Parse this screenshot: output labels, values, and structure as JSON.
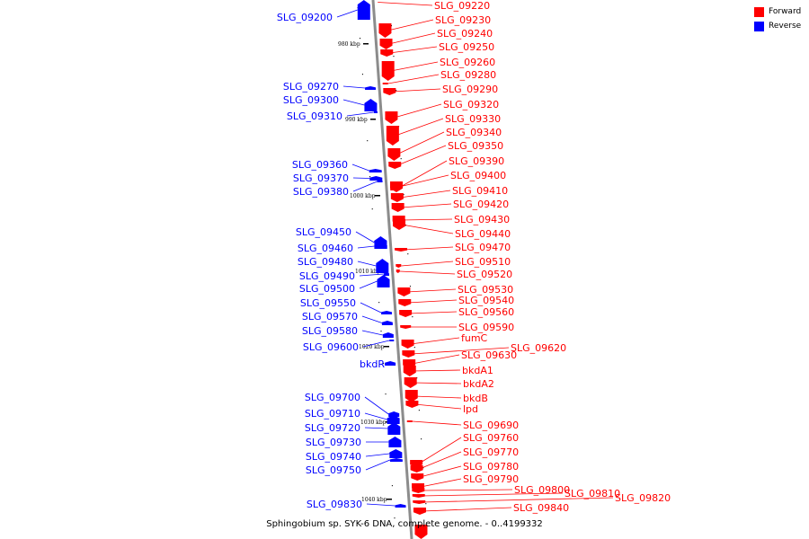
{
  "legend": {
    "forward_label": "Forward",
    "reverse_label": "Reverse",
    "forward_color": "#ff0000",
    "reverse_color": "#0000ff"
  },
  "caption": "Sphingobium sp. SYK-6 DNA, complete genome. - 0..4199332",
  "backbone_color": "#8c8c8c",
  "scale_ticks": [
    "980 kbp",
    "990 kbp",
    "1000 kbp",
    "1010 kbp",
    "1020 kbp",
    "1030 kbp",
    "1040 kbp"
  ],
  "genes_reverse": [
    "SLG_09200",
    "SLG_09270",
    "SLG_09300",
    "SLG_09310",
    "SLG_09360",
    "SLG_09370",
    "SLG_09380",
    "SLG_09450",
    "SLG_09460",
    "SLG_09480",
    "SLG_09490",
    "SLG_09500",
    "SLG_09550",
    "SLG_09570",
    "SLG_09580",
    "SLG_09600",
    "bkdR",
    "SLG_09700",
    "SLG_09710",
    "SLG_09720",
    "SLG_09730",
    "SLG_09740",
    "SLG_09750",
    "SLG_09830"
  ],
  "genes_forward": [
    "SLG_09220",
    "SLG_09230",
    "SLG_09240",
    "SLG_09250",
    "SLG_09260",
    "SLG_09280",
    "SLG_09290",
    "SLG_09320",
    "SLG_09330",
    "SLG_09340",
    "SLG_09350",
    "SLG_09390",
    "SLG_09400",
    "SLG_09410",
    "SLG_09420",
    "SLG_09430",
    "SLG_09440",
    "SLG_09470",
    "SLG_09510",
    "SLG_09520",
    "SLG_09530",
    "SLG_09540",
    "SLG_09560",
    "SLG_09590",
    "fumC",
    "SLG_09620",
    "SLG_09630",
    "bkdA1",
    "bkdA2",
    "bkdB",
    "lpd",
    "SLG_09690",
    "SLG_09760",
    "SLG_09770",
    "SLG_09780",
    "SLG_09790",
    "SLG_09800",
    "SLG_09810",
    "SLG_09820",
    "SLG_09840"
  ]
}
